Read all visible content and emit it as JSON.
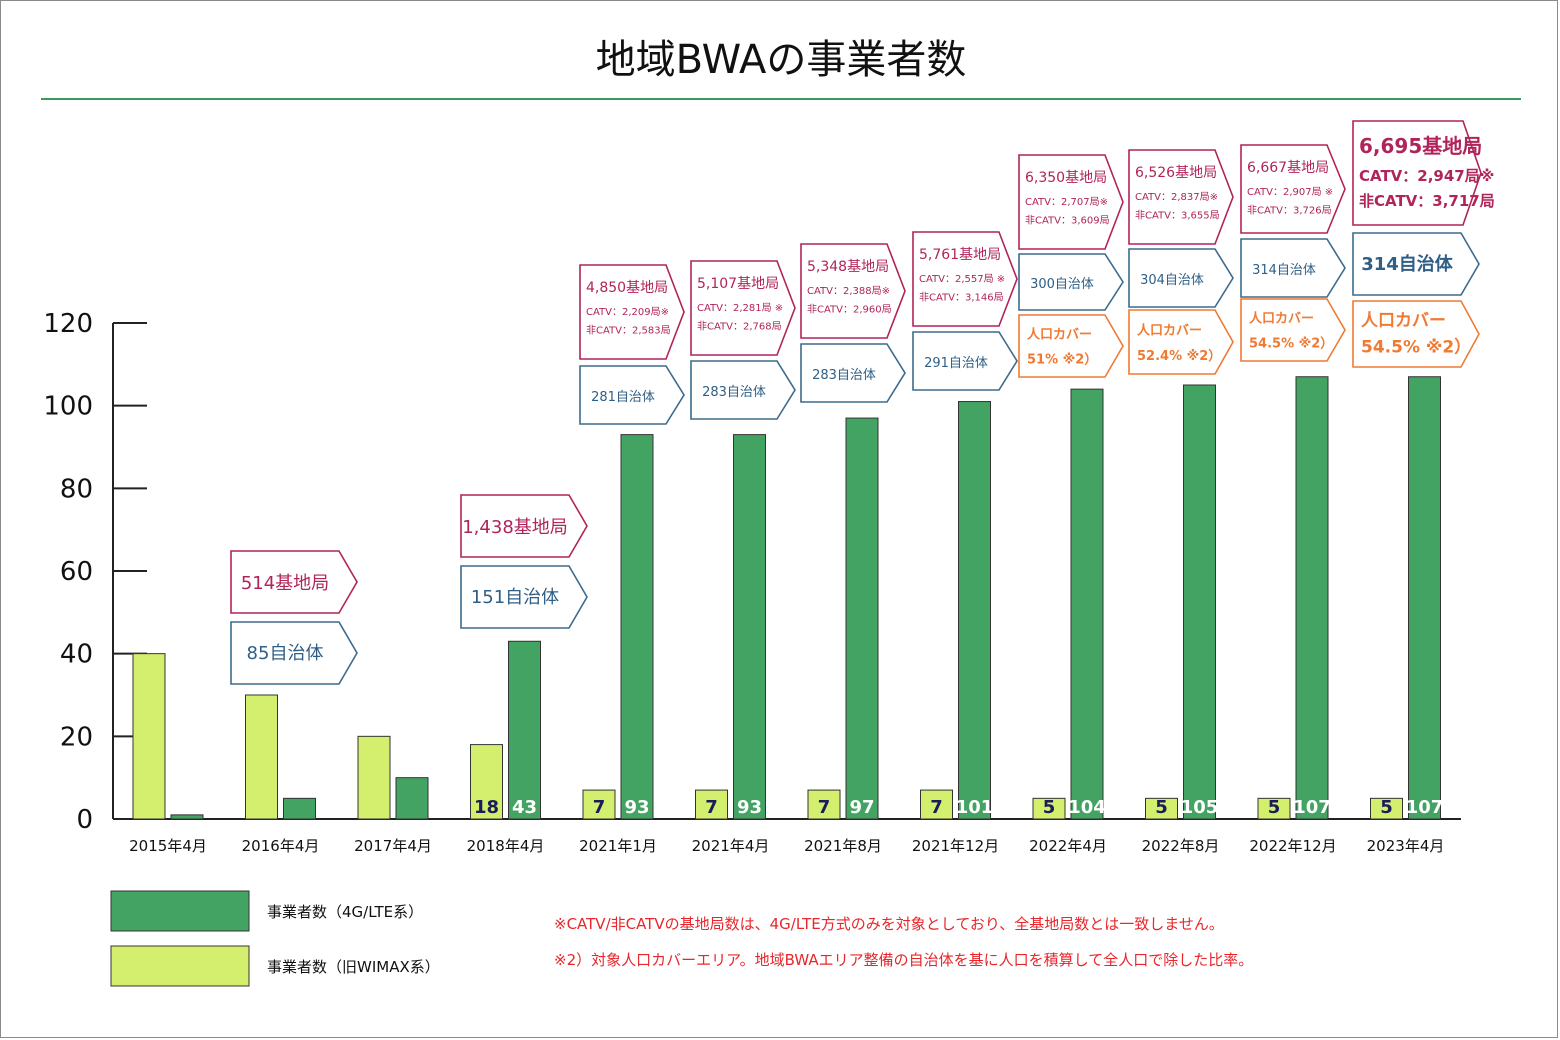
{
  "chart_data": {
    "type": "bar",
    "title": "地域BWAの事業者数",
    "categories": [
      "2015年4月",
      "2016年4月",
      "2017年4月",
      "2018年4月",
      "2021年1月",
      "2021年4月",
      "2021年8月",
      "2021年12月",
      "2022年4月",
      "2022年8月",
      "2022年12月",
      "2023年4月"
    ],
    "series": [
      {
        "name": "事業者数（旧WIMAX系）",
        "color": "#d4ef6e",
        "values": [
          40,
          30,
          20,
          18,
          7,
          7,
          7,
          7,
          5,
          5,
          5,
          5
        ],
        "labels": [
          "",
          "",
          "",
          "18",
          "7",
          "7",
          "7",
          "7",
          "5",
          "5",
          "5",
          "5"
        ]
      },
      {
        "name": "事業者数（4G/LTE系）",
        "color": "#43a363",
        "values": [
          1,
          5,
          10,
          43,
          93,
          93,
          97,
          101,
          104,
          105,
          107,
          107
        ],
        "labels": [
          "",
          "",
          "",
          "43",
          "93",
          "93",
          "97",
          "101",
          "104",
          "105",
          "107",
          "107"
        ]
      }
    ],
    "ylim": [
      0,
      120
    ],
    "yticks": [
      "0",
      "20",
      "40",
      "60",
      "80",
      "100",
      "120"
    ],
    "annotations": [
      {
        "station": [
          "514基地局"
        ],
        "municipalities": "85自治体",
        "coverage": []
      },
      {
        "station": [
          "1,438基地局"
        ],
        "municipalities": "151自治体",
        "coverage": []
      },
      {
        "station": [
          "4,850基地局",
          "CATV：2,209局※",
          "非CATV：2,583局"
        ],
        "municipalities": "281自治体",
        "coverage": []
      },
      {
        "station": [
          "5,107基地局",
          "CATV：2,281局 ※",
          "非CATV：2,768局"
        ],
        "municipalities": "283自治体",
        "coverage": []
      },
      {
        "station": [
          "5,348基地局",
          "CATV：2,388局※",
          "非CATV：2,960局"
        ],
        "municipalities": "283自治体",
        "coverage": []
      },
      {
        "station": [
          "5,761基地局",
          "CATV：2,557局 ※",
          "非CATV：3,146局"
        ],
        "municipalities": "291自治体",
        "coverage": []
      },
      {
        "station": [
          "6,350基地局",
          "CATV：2,707局※",
          "非CATV：3,609局"
        ],
        "municipalities": "300自治体",
        "coverage": [
          "人口カバー",
          "51% ※2）"
        ]
      },
      {
        "station": [
          "6,526基地局",
          "CATV：2,837局※",
          "非CATV：3,655局"
        ],
        "municipalities": "304自治体",
        "coverage": [
          "人口カバー",
          "52.4% ※2）"
        ]
      },
      {
        "station": [
          "6,667基地局",
          "CATV：2,907局 ※",
          "非CATV：3,726局"
        ],
        "municipalities": "314自治体",
        "coverage": [
          "人口カバー",
          "54.5% ※2）"
        ]
      },
      {
        "station": [
          "6,695基地局",
          "CATV：2,947局※",
          "非CATV：3,717局"
        ],
        "municipalities": "314自治体",
        "coverage": [
          "人口カバー",
          "54.5% ※2）"
        ]
      }
    ],
    "legend": [
      {
        "label": "事業者数（4G/LTE系）",
        "color": "#43a363"
      },
      {
        "label": "事業者数（旧WIMAX系）",
        "color": "#d4ef6e"
      }
    ],
    "notes": [
      "※CATV/非CATVの基地局数は、4G/LTE方式のみを対象としており、全基地局数とは一致しません。",
      "※2）対象人口カバーエリア。地域BWAエリア整備の自治体を基に人口を積算して全人口で除した比率。"
    ]
  },
  "colors": {
    "station_border": "#b0245a",
    "station_text": "#b0245a",
    "muni_border": "#3d6a8c",
    "muni_text": "#2f5f86",
    "coverage_border": "#f07a32",
    "coverage_text": "#f07a32",
    "title_rule": "#3a9a5b"
  }
}
